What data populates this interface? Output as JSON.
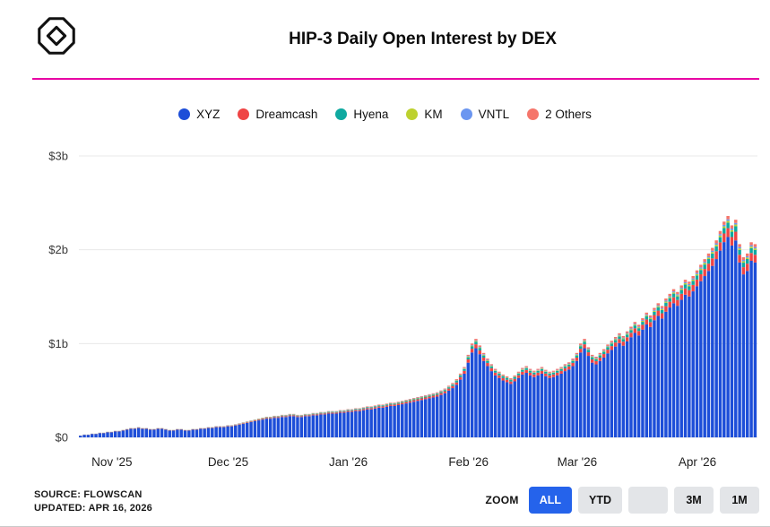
{
  "header": {
    "title": "HIP-3 Daily Open Interest by DEX",
    "accent_line_color": "#e800a4"
  },
  "chart_data": {
    "type": "bar",
    "stacked": true,
    "title": "HIP-3 Daily Open Interest by DEX",
    "unit": "billions USD",
    "ylim": [
      0,
      3
    ],
    "grid": true,
    "legend_position": "top",
    "y_ticks": [
      {
        "value": 0,
        "label": "$0"
      },
      {
        "value": 1,
        "label": "$1b"
      },
      {
        "value": 2,
        "label": "$2b"
      },
      {
        "value": 3,
        "label": "$3b"
      }
    ],
    "x_ticks": [
      {
        "index": 8,
        "label": "Nov '25"
      },
      {
        "index": 38,
        "label": "Dec '25"
      },
      {
        "index": 69,
        "label": "Jan '26"
      },
      {
        "index": 100,
        "label": "Feb '26"
      },
      {
        "index": 128,
        "label": "Mar '26"
      },
      {
        "index": 159,
        "label": "Apr '26"
      }
    ],
    "totals_billions": [
      0.02,
      0.03,
      0.03,
      0.04,
      0.04,
      0.05,
      0.05,
      0.06,
      0.06,
      0.07,
      0.07,
      0.08,
      0.09,
      0.1,
      0.1,
      0.11,
      0.1,
      0.1,
      0.09,
      0.09,
      0.1,
      0.1,
      0.09,
      0.08,
      0.08,
      0.09,
      0.09,
      0.08,
      0.08,
      0.09,
      0.09,
      0.1,
      0.1,
      0.11,
      0.11,
      0.12,
      0.12,
      0.12,
      0.13,
      0.13,
      0.14,
      0.15,
      0.16,
      0.17,
      0.18,
      0.19,
      0.2,
      0.21,
      0.22,
      0.22,
      0.23,
      0.23,
      0.24,
      0.24,
      0.25,
      0.25,
      0.24,
      0.24,
      0.25,
      0.25,
      0.26,
      0.26,
      0.27,
      0.27,
      0.28,
      0.28,
      0.28,
      0.29,
      0.29,
      0.3,
      0.3,
      0.31,
      0.31,
      0.32,
      0.33,
      0.33,
      0.34,
      0.35,
      0.35,
      0.36,
      0.37,
      0.37,
      0.38,
      0.39,
      0.4,
      0.41,
      0.42,
      0.43,
      0.44,
      0.45,
      0.46,
      0.47,
      0.48,
      0.5,
      0.52,
      0.55,
      0.58,
      0.62,
      0.68,
      0.75,
      0.88,
      1.0,
      1.05,
      0.98,
      0.9,
      0.84,
      0.78,
      0.73,
      0.7,
      0.67,
      0.65,
      0.63,
      0.66,
      0.7,
      0.74,
      0.76,
      0.73,
      0.71,
      0.73,
      0.75,
      0.72,
      0.7,
      0.71,
      0.73,
      0.75,
      0.78,
      0.8,
      0.84,
      0.9,
      1.0,
      1.05,
      0.96,
      0.88,
      0.86,
      0.9,
      0.94,
      0.99,
      1.03,
      1.07,
      1.11,
      1.08,
      1.13,
      1.18,
      1.23,
      1.2,
      1.27,
      1.33,
      1.3,
      1.38,
      1.43,
      1.4,
      1.48,
      1.53,
      1.58,
      1.55,
      1.62,
      1.68,
      1.66,
      1.72,
      1.78,
      1.84,
      1.9,
      1.96,
      2.02,
      2.1,
      2.2,
      2.3,
      2.36,
      2.26,
      2.32,
      2.06,
      1.92,
      1.96,
      2.08,
      2.06
    ],
    "series": [
      {
        "name": "XYZ",
        "color": "#1d4ed8",
        "share_of_total": 0.905
      },
      {
        "name": "Dreamcash",
        "color": "#ef4444",
        "share_of_total": 0.04
      },
      {
        "name": "Hyena",
        "color": "#0fa9a0",
        "share_of_total": 0.025
      },
      {
        "name": "KM",
        "color": "#bdd12f",
        "share_of_total": 0.008
      },
      {
        "name": "VNTL",
        "color": "#6b96f0",
        "share_of_total": 0.007
      },
      {
        "name": "2 Others",
        "color": "#f5766b",
        "share_of_total": 0.015
      }
    ]
  },
  "footer": {
    "source_line1": "SOURCE: FLOWSCAN",
    "source_line2": "UPDATED: APR 16, 2026",
    "zoom_label": "ZOOM",
    "zoom_buttons": [
      {
        "id": "all",
        "label": "ALL",
        "active": true
      },
      {
        "id": "ytd",
        "label": "YTD",
        "active": false
      },
      {
        "id": "blank",
        "label": "",
        "active": false
      },
      {
        "id": "3m",
        "label": "3M",
        "active": false
      },
      {
        "id": "1m",
        "label": "1M",
        "active": false
      }
    ]
  }
}
